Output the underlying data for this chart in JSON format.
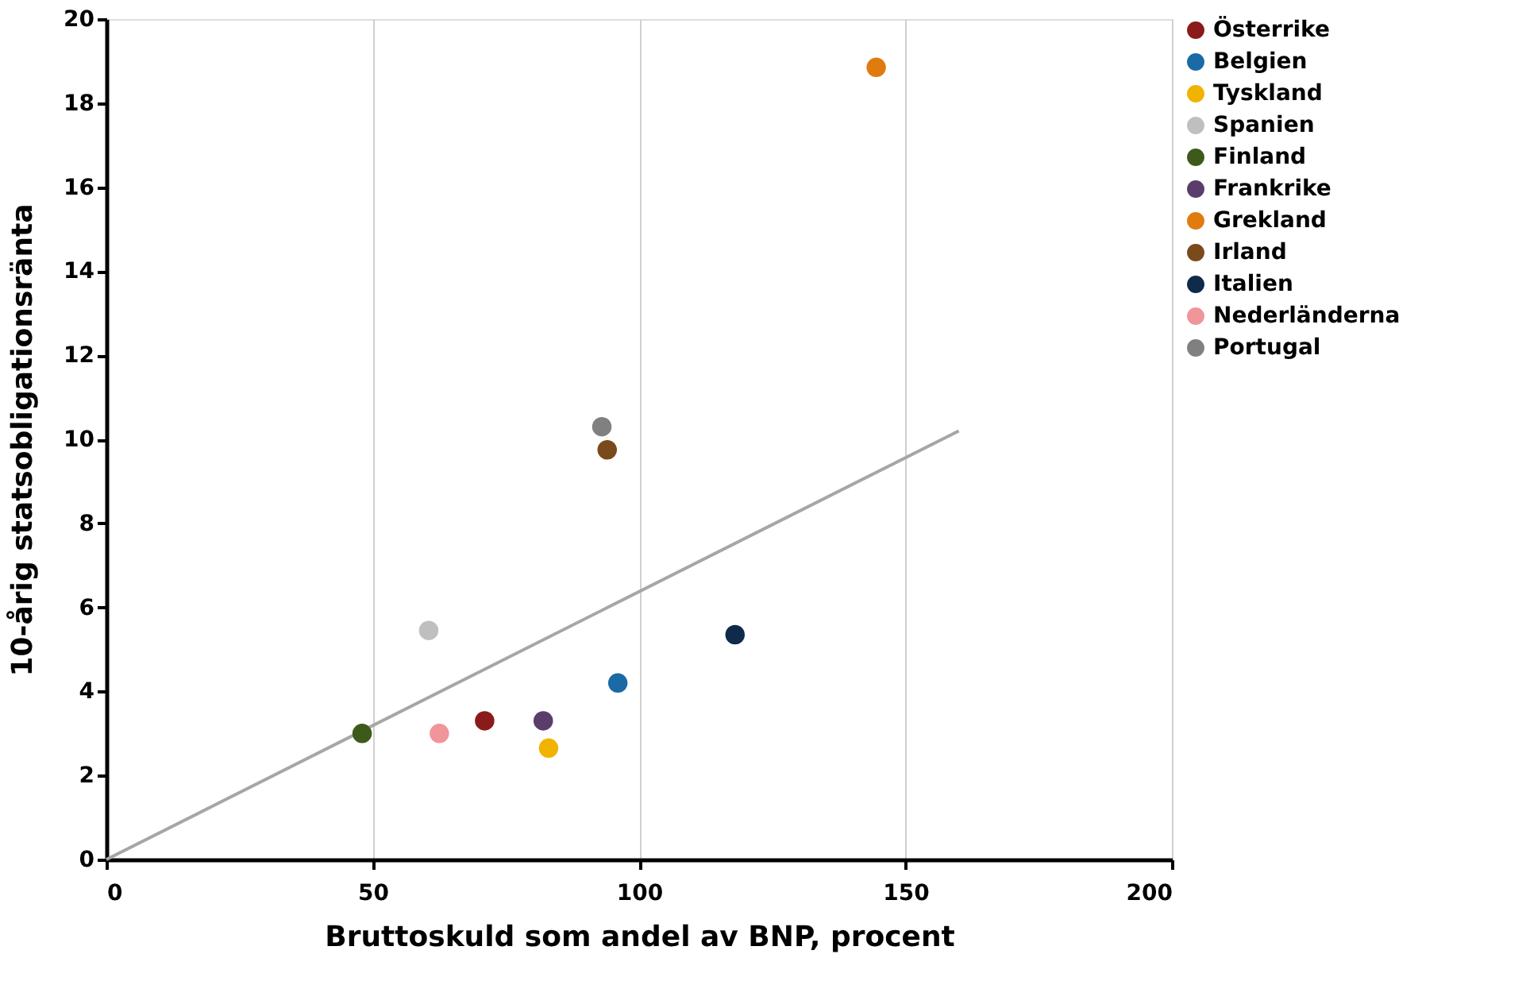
{
  "chart_data": {
    "type": "scatter",
    "xlabel": "Bruttoskuld som andel av BNP, procent",
    "ylabel": "10-årig statsobligationsränta",
    "xlim": [
      0,
      200
    ],
    "xticks": [
      0,
      50,
      100,
      150,
      200
    ],
    "ylim": [
      0,
      20
    ],
    "yticks": [
      0,
      2,
      4,
      6,
      8,
      10,
      12,
      14,
      16,
      18,
      20
    ],
    "grid": "x",
    "legend": "right",
    "marker": "circle",
    "series": [
      {
        "name": "Österrike",
        "color": "#8b1a1a",
        "x": [
          71
        ],
        "values": [
          3.3
        ]
      },
      {
        "name": "Belgien",
        "color": "#1a6aa6",
        "x": [
          96
        ],
        "values": [
          4.2
        ]
      },
      {
        "name": "Tyskland",
        "color": "#f0b400",
        "x": [
          83
        ],
        "values": [
          2.65
        ]
      },
      {
        "name": "Spanien",
        "color": "#bfbfbf",
        "x": [
          60.5
        ],
        "values": [
          5.45
        ]
      },
      {
        "name": "Finland",
        "color": "#3d5a1a",
        "x": [
          48
        ],
        "values": [
          3.0
        ]
      },
      {
        "name": "Frankrike",
        "color": "#5a3d6a",
        "x": [
          82
        ],
        "values": [
          3.3
        ]
      },
      {
        "name": "Grekland",
        "color": "#e07b10",
        "x": [
          144.5
        ],
        "values": [
          18.85
        ]
      },
      {
        "name": "Irland",
        "color": "#7a4a1a",
        "x": [
          94
        ],
        "values": [
          9.75
        ]
      },
      {
        "name": "Italien",
        "color": "#0f2a4a",
        "x": [
          118
        ],
        "values": [
          5.35
        ]
      },
      {
        "name": "Nederländerna",
        "color": "#f0959a",
        "x": [
          62.5
        ],
        "values": [
          3.0
        ]
      },
      {
        "name": "Portugal",
        "color": "#808080",
        "x": [
          93
        ],
        "values": [
          10.3
        ]
      },
      {
        "type": "line",
        "marker": "none",
        "color": "#a6a6a6",
        "x": [
          0,
          160
        ],
        "values": [
          0,
          10.2
        ]
      }
    ]
  }
}
